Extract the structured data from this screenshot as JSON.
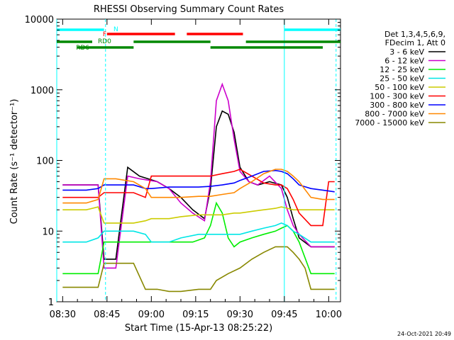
{
  "chart_data": {
    "type": "line",
    "title": "RHESSI Observing Summary Count Rates",
    "xlabel": "Start Time (15-Apr-13 08:25:22)",
    "ylabel": "Count Rate (s⁻¹ detector⁻¹)",
    "ylog": true,
    "ylim": [
      1,
      10000
    ],
    "xlim_minutes": [
      -2,
      94
    ],
    "x_start_clock": "08:25:22",
    "x_ticks": [
      {
        "label": "08:30",
        "minute": 0
      },
      {
        "label": "08:45",
        "minute": 15
      },
      {
        "label": "09:00",
        "minute": 30
      },
      {
        "label": "09:15",
        "minute": 45
      },
      {
        "label": "09:30",
        "minute": 60
      },
      {
        "label": "09:45",
        "minute": 75
      },
      {
        "label": "10:00",
        "minute": 90
      }
    ],
    "y_ticks": [
      {
        "label": "1",
        "value": 1
      },
      {
        "label": "10",
        "value": 10
      },
      {
        "label": "100",
        "value": 100
      },
      {
        "label": "1000",
        "value": 1000
      },
      {
        "label": "10000",
        "value": 10000
      }
    ],
    "legend_header": [
      "Det 1,3,4,5,6,9,",
      "FDecim 1, Att 0"
    ],
    "legend_position": "right",
    "series": [
      {
        "name": "3 - 6 keV",
        "color": "#000000",
        "x": [
          0,
          2,
          8,
          12,
          14,
          18,
          22,
          26,
          32,
          36,
          40,
          44,
          48,
          50,
          52,
          54,
          56,
          58,
          60,
          63,
          66,
          70,
          74,
          76,
          78,
          80,
          84,
          90,
          92
        ],
        "y": [
          45,
          45,
          45,
          45,
          4,
          4,
          80,
          60,
          50,
          40,
          30,
          20,
          15,
          40,
          300,
          500,
          450,
          250,
          80,
          50,
          45,
          50,
          45,
          30,
          15,
          8,
          6,
          6,
          6
        ]
      },
      {
        "name": "6 - 12 keV",
        "color": "#cc00cc",
        "x": [
          0,
          2,
          8,
          12,
          14,
          18,
          22,
          26,
          32,
          36,
          40,
          44,
          48,
          50,
          52,
          54,
          56,
          58,
          60,
          63,
          66,
          70,
          74,
          76,
          78,
          80,
          84,
          90,
          92
        ],
        "y": [
          45,
          45,
          45,
          45,
          3,
          3,
          60,
          55,
          50,
          40,
          25,
          18,
          14,
          50,
          700,
          1200,
          700,
          200,
          70,
          50,
          45,
          60,
          40,
          20,
          12,
          9,
          6,
          6,
          6
        ]
      },
      {
        "name": "12 - 25 keV",
        "color": "#00ee00",
        "x": [
          0,
          4,
          8,
          12,
          14,
          18,
          24,
          28,
          32,
          36,
          40,
          44,
          48,
          50,
          52,
          54,
          56,
          58,
          60,
          64,
          68,
          72,
          74,
          76,
          78,
          80,
          84,
          88,
          90,
          92
        ],
        "y": [
          2.5,
          2.5,
          2.5,
          2.5,
          7,
          7,
          7,
          7,
          7,
          7,
          7,
          7,
          8,
          12,
          25,
          18,
          8,
          6,
          7,
          8,
          9,
          10,
          11,
          12,
          10,
          7,
          2.5,
          2.5,
          2.5,
          2.5
        ]
      },
      {
        "name": "25 - 50 keV",
        "color": "#00e6e6",
        "x": [
          0,
          8,
          12,
          14,
          18,
          24,
          28,
          30,
          36,
          40,
          46,
          50,
          54,
          58,
          60,
          64,
          68,
          72,
          74,
          76,
          78,
          80,
          84,
          88,
          92
        ],
        "y": [
          7,
          7,
          8,
          10,
          10,
          10,
          9,
          7,
          7,
          8,
          9,
          9,
          9,
          9,
          9,
          10,
          11,
          12,
          13,
          12,
          10,
          9,
          7,
          7,
          7
        ]
      },
      {
        "name": "50 - 100 keV",
        "color": "#cccc00",
        "x": [
          0,
          8,
          12,
          14,
          18,
          24,
          28,
          30,
          36,
          40,
          46,
          50,
          54,
          58,
          60,
          64,
          68,
          72,
          74,
          76,
          78,
          80,
          84,
          88,
          92
        ],
        "y": [
          20,
          20,
          22,
          13,
          13,
          13,
          14,
          15,
          15,
          16,
          17,
          17,
          17,
          18,
          18,
          19,
          20,
          21,
          22,
          21,
          20,
          20,
          20,
          20,
          20
        ]
      },
      {
        "name": "100 - 300 keV",
        "color": "#ff0000",
        "x": [
          0,
          8,
          12,
          14,
          18,
          24,
          28,
          30,
          36,
          40,
          46,
          50,
          54,
          58,
          60,
          64,
          68,
          72,
          74,
          76,
          78,
          80,
          84,
          88,
          90,
          92
        ],
        "y": [
          30,
          30,
          30,
          35,
          35,
          35,
          30,
          60,
          60,
          60,
          60,
          60,
          65,
          70,
          75,
          60,
          48,
          45,
          45,
          40,
          28,
          18,
          12,
          12,
          50,
          50
        ]
      },
      {
        "name": "300 - 800 keV",
        "color": "#0000ff",
        "x": [
          0,
          8,
          12,
          14,
          18,
          24,
          28,
          30,
          36,
          40,
          46,
          50,
          54,
          58,
          60,
          64,
          68,
          72,
          74,
          76,
          78,
          80,
          84,
          88,
          92
        ],
        "y": [
          38,
          38,
          40,
          45,
          45,
          45,
          40,
          40,
          42,
          42,
          42,
          43,
          45,
          48,
          52,
          60,
          70,
          72,
          70,
          65,
          55,
          45,
          40,
          38,
          36
        ]
      },
      {
        "name": "800 - 7000 keV",
        "color": "#ff8800",
        "x": [
          0,
          8,
          12,
          14,
          18,
          24,
          28,
          30,
          36,
          40,
          46,
          50,
          54,
          58,
          60,
          64,
          68,
          72,
          74,
          76,
          78,
          80,
          84,
          88,
          92
        ],
        "y": [
          25,
          25,
          28,
          55,
          55,
          50,
          40,
          30,
          30,
          30,
          31,
          31,
          33,
          35,
          40,
          50,
          65,
          75,
          75,
          70,
          60,
          50,
          30,
          28,
          28
        ]
      },
      {
        "name": "7000 - 15000 keV",
        "color": "#888800",
        "x": [
          0,
          6,
          12,
          14,
          18,
          24,
          28,
          32,
          36,
          40,
          46,
          50,
          52,
          56,
          60,
          64,
          68,
          72,
          74,
          76,
          78,
          80,
          82,
          84,
          88,
          92
        ],
        "y": [
          1.6,
          1.6,
          1.6,
          3.5,
          3.5,
          3.5,
          1.5,
          1.5,
          1.4,
          1.4,
          1.5,
          1.5,
          2,
          2.5,
          3,
          4,
          5,
          6,
          6,
          6,
          5,
          4,
          3,
          1.5,
          1.5,
          1.5
        ]
      }
    ],
    "state_bars": [
      {
        "label": "N",
        "color": "#00ffff",
        "segments": [
          [
            -2,
            14
          ],
          [
            75,
            94
          ]
        ]
      },
      {
        "label": "F",
        "color": "#ff0000",
        "segments": [
          [
            15,
            38
          ],
          [
            42,
            61
          ]
        ]
      },
      {
        "label": "RD0",
        "color": "#008800",
        "segments": [
          [
            -2,
            10
          ],
          [
            24,
            50
          ],
          [
            62,
            94
          ]
        ]
      },
      {
        "label": "RD6",
        "color": "#008800",
        "segments": [
          [
            5,
            24
          ],
          [
            50,
            88
          ]
        ]
      }
    ],
    "vlines": [
      {
        "minute": -2,
        "color": "#00ffff",
        "dashed": false
      },
      {
        "minute": 14.5,
        "color": "#00ffff",
        "dashed": true
      },
      {
        "minute": 75,
        "color": "#00ffff",
        "dashed": false
      },
      {
        "minute": 92.5,
        "color": "#00ffff",
        "dashed": true
      }
    ],
    "date_stamp": "24-Oct-2021 20:49"
  }
}
